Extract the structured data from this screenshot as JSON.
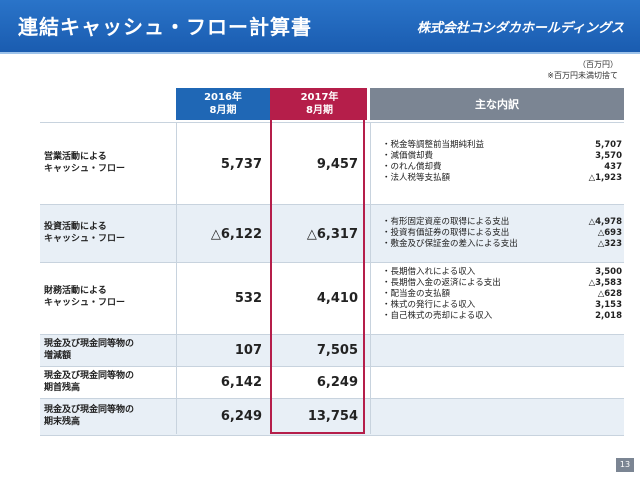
{
  "header": {
    "title": "連結キャッシュ・フロー計算書",
    "company": "株式会社コシダカホールディングス"
  },
  "unit_note": {
    "unit": "（百万円）",
    "rounding": "※百万円未満切捨て"
  },
  "columns": {
    "y2016_line1": "2016年",
    "y2016_line2": "8月期",
    "y2017_line1": "2017年",
    "y2017_line2": "8月期",
    "items": "主な内訳"
  },
  "rows": [
    {
      "label_1": "営業活動による",
      "label_2": "キャッシュ・フロー",
      "v2016": "5,737",
      "v2017": "9,457",
      "items": [
        {
          "name": "・税金等調整前当期純利益",
          "amount": "5,707"
        },
        {
          "name": "・減価償却費",
          "amount": "3,570"
        },
        {
          "name": "・のれん償却費",
          "amount": "437"
        },
        {
          "name": "・法人税等支払額",
          "amount": "△1,923"
        }
      ]
    },
    {
      "label_1": "投資活動による",
      "label_2": "キャッシュ・フロー",
      "v2016": "△6,122",
      "v2017": "△6,317",
      "items": [
        {
          "name": "・有形固定資産の取得による支出",
          "amount": "△4,978"
        },
        {
          "name": "・投資有価証券の取得による支出",
          "amount": "△693"
        },
        {
          "name": "・敷金及び保証金の差入による支出",
          "amount": "△323"
        }
      ]
    },
    {
      "label_1": "財務活動による",
      "label_2": "キャッシュ・フロー",
      "v2016": "532",
      "v2017": "4,410",
      "items": [
        {
          "name": "・長期借入れによる収入",
          "amount": "3,500"
        },
        {
          "name": "・長期借入金の返済による支出",
          "amount": "△3,583"
        },
        {
          "name": "・配当金の支払額",
          "amount": "△628"
        },
        {
          "name": "・株式の発行による収入",
          "amount": "3,153"
        },
        {
          "name": "・自己株式の売却による収入",
          "amount": "2,018"
        }
      ]
    },
    {
      "label_1": "現金及び現金同等物の",
      "label_2": "増減額",
      "v2016": "107",
      "v2017": "7,505",
      "items": []
    },
    {
      "label_1": "現金及び現金同等物の",
      "label_2": "期首残高",
      "v2016": "6,142",
      "v2017": "6,249",
      "items": []
    },
    {
      "label_1": "現金及び現金同等物の",
      "label_2": "期末残高",
      "v2016": "6,249",
      "v2017": "13,754",
      "items": []
    }
  ],
  "page_number": "13"
}
